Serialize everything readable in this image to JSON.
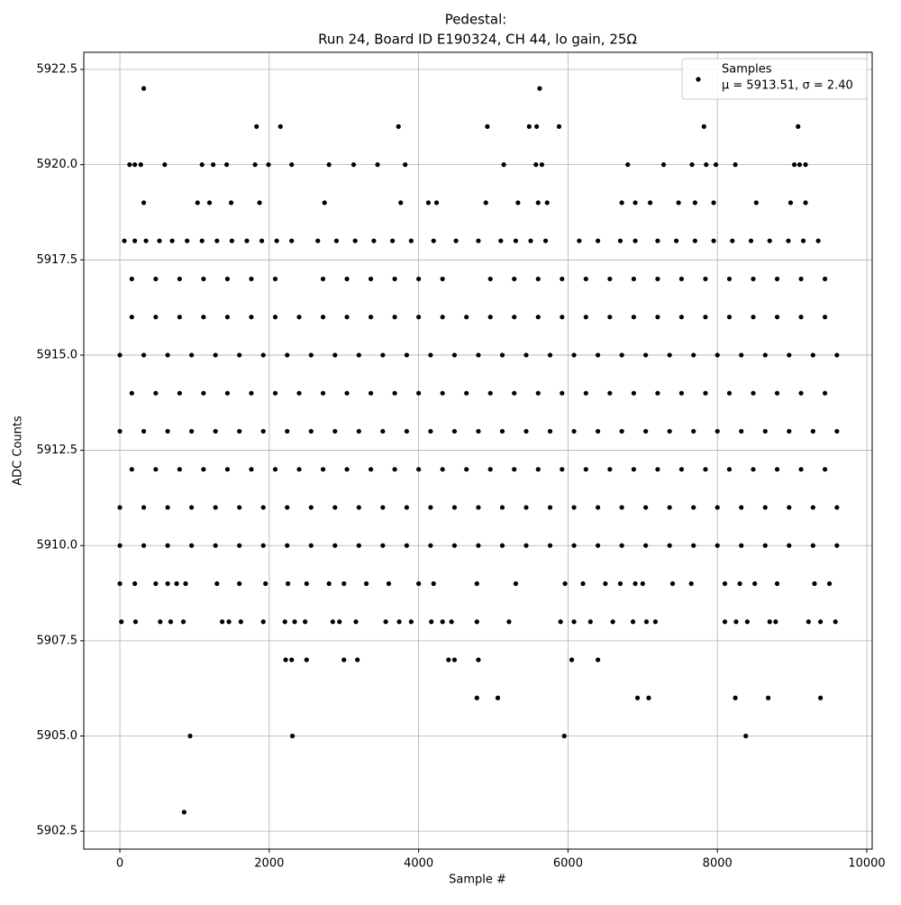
{
  "chart_data": {
    "type": "scatter",
    "title": [
      "Pedestal:",
      "Run 24, Board ID E190324, CH 44, lo gain, 25Ω"
    ],
    "x_label": "Sample #",
    "y_label": "ADC Counts",
    "legend_label": "μ = 5913.51, σ = 2.40",
    "legend_position": "upper right",
    "grid": true,
    "xlim": [
      -483,
      10072
    ],
    "xticks": [
      0,
      2000,
      4000,
      6000,
      8000,
      10000
    ],
    "ylim": [
      5902.03,
      5922.95
    ],
    "yticks": [
      5902.5,
      {
        "value": 5905,
        "label": "5905.0"
      },
      5907.5,
      {
        "value": 5910,
        "label": "5910.0"
      },
      5912.5,
      {
        "value": 5915,
        "label": "5915.0"
      },
      5917.5,
      {
        "value": 5920,
        "label": "5920.0"
      },
      5922.5
    ],
    "series": [
      {
        "name": "Samples",
        "color": "#000000",
        "x": [
          320,
          5620,
          1830,
          2150,
          3730,
          4920,
          5480,
          5580,
          5880,
          7820,
          9080,
          130,
          200,
          280,
          600,
          1100,
          1250,
          1430,
          1810,
          1990,
          2300,
          2800,
          3130,
          3450,
          3820,
          5140,
          5570,
          5650,
          6800,
          7280,
          7660,
          7850,
          7980,
          8240,
          9030,
          9100,
          9180,
          320,
          1040,
          1200,
          1490,
          1870,
          2740,
          3760,
          4130,
          4240,
          4900,
          5330,
          5600,
          5720,
          6720,
          6900,
          7100,
          7480,
          7700,
          7950,
          8520,
          8980,
          9180,
          60,
          200,
          350,
          530,
          700,
          900,
          1100,
          1300,
          1500,
          1700,
          1900,
          2100,
          2300,
          2650,
          2900,
          3150,
          3400,
          3650,
          3900,
          4200,
          4500,
          4800,
          5100,
          5300,
          5500,
          5700,
          6150,
          6400,
          6700,
          6900,
          7200,
          7450,
          7700,
          7950,
          8200,
          8450,
          8700,
          8950,
          9150,
          9350,
          160,
          480,
          800,
          1120,
          1440,
          1760,
          2080,
          2720,
          3040,
          3360,
          3680,
          4000,
          4320,
          4960,
          5280,
          5600,
          5920,
          6240,
          6560,
          6880,
          7200,
          7520,
          7840,
          8160,
          8480,
          8800,
          9120,
          9440,
          160,
          480,
          800,
          1120,
          1440,
          1760,
          2080,
          2400,
          2720,
          3040,
          3360,
          3680,
          4000,
          4320,
          4640,
          4960,
          5280,
          5600,
          5920,
          6240,
          6560,
          6880,
          7200,
          7520,
          7840,
          8160,
          8480,
          8800,
          9120,
          9440,
          0,
          320,
          640,
          960,
          1280,
          1600,
          1920,
          2240,
          2560,
          2880,
          3200,
          3520,
          3840,
          4160,
          4480,
          4800,
          5120,
          5440,
          5760,
          6080,
          6400,
          6720,
          7040,
          7360,
          7680,
          8000,
          8320,
          8640,
          8960,
          9280,
          9600,
          160,
          480,
          800,
          1120,
          1440,
          1760,
          2080,
          2400,
          2720,
          3040,
          3360,
          3680,
          4000,
          4320,
          4640,
          4960,
          5280,
          5600,
          5920,
          6240,
          6560,
          6880,
          7200,
          7520,
          7840,
          8160,
          8480,
          8800,
          9120,
          9440,
          0,
          320,
          640,
          960,
          1280,
          1600,
          1920,
          2240,
          2560,
          2880,
          3200,
          3520,
          3840,
          4160,
          4480,
          4800,
          5120,
          5440,
          5760,
          6080,
          6400,
          6720,
          7040,
          7360,
          7680,
          8000,
          8320,
          8640,
          8960,
          9280,
          9600,
          160,
          480,
          800,
          1120,
          1440,
          1760,
          2080,
          2400,
          2720,
          3040,
          3360,
          3680,
          4000,
          4320,
          4640,
          4960,
          5280,
          5600,
          5920,
          6240,
          6560,
          6880,
          7200,
          7520,
          7840,
          8160,
          8480,
          8800,
          9120,
          9440,
          0,
          320,
          640,
          960,
          1280,
          1600,
          1920,
          2240,
          2560,
          2880,
          3200,
          3520,
          3840,
          4160,
          4480,
          4800,
          5120,
          5440,
          5760,
          6080,
          6400,
          6720,
          7040,
          7360,
          7680,
          8000,
          8320,
          8640,
          8960,
          9280,
          9600,
          0,
          320,
          640,
          960,
          1280,
          1600,
          1920,
          2240,
          2560,
          2880,
          3200,
          3520,
          3840,
          4160,
          4480,
          4800,
          5120,
          5440,
          5760,
          6080,
          6400,
          6720,
          7040,
          7360,
          7680,
          8000,
          8320,
          8640,
          8960,
          9280,
          9600,
          0,
          200,
          480,
          640,
          760,
          880,
          1300,
          1600,
          1950,
          2250,
          2500,
          2800,
          3000,
          3300,
          3600,
          4000,
          4200,
          4780,
          5300,
          5960,
          6200,
          6500,
          6700,
          6900,
          7000,
          7400,
          7650,
          8100,
          8300,
          8500,
          8800,
          9300,
          9500,
          20,
          210,
          540,
          680,
          850,
          1370,
          1460,
          1620,
          1920,
          2210,
          2340,
          2480,
          2850,
          2940,
          3160,
          3560,
          3740,
          3900,
          4170,
          4320,
          4440,
          4780,
          5210,
          5900,
          6080,
          6300,
          6600,
          6870,
          7050,
          7170,
          8100,
          8250,
          8400,
          8700,
          8780,
          9220,
          9380,
          9580,
          2220,
          2300,
          2500,
          3000,
          3180,
          4400,
          4480,
          4800,
          6050,
          6400,
          4780,
          5060,
          6930,
          7080,
          8240,
          8680,
          9380,
          940,
          2310,
          5950,
          8380,
          860
        ],
        "values": [
          5922,
          5922,
          5921,
          5921,
          5921,
          5921,
          5921,
          5921,
          5921,
          5921,
          5921,
          5920,
          5920,
          5920,
          5920,
          5920,
          5920,
          5920,
          5920,
          5920,
          5920,
          5920,
          5920,
          5920,
          5920,
          5920,
          5920,
          5920,
          5920,
          5920,
          5920,
          5920,
          5920,
          5920,
          5920,
          5920,
          5920,
          5919,
          5919,
          5919,
          5919,
          5919,
          5919,
          5919,
          5919,
          5919,
          5919,
          5919,
          5919,
          5919,
          5919,
          5919,
          5919,
          5919,
          5919,
          5919,
          5919,
          5919,
          5919,
          5918,
          5918,
          5918,
          5918,
          5918,
          5918,
          5918,
          5918,
          5918,
          5918,
          5918,
          5918,
          5918,
          5918,
          5918,
          5918,
          5918,
          5918,
          5918,
          5918,
          5918,
          5918,
          5918,
          5918,
          5918,
          5918,
          5918,
          5918,
          5918,
          5918,
          5918,
          5918,
          5918,
          5918,
          5918,
          5918,
          5918,
          5918,
          5918,
          5918,
          5917,
          5917,
          5917,
          5917,
          5917,
          5917,
          5917,
          5917,
          5917,
          5917,
          5917,
          5917,
          5917,
          5917,
          5917,
          5917,
          5917,
          5917,
          5917,
          5917,
          5917,
          5917,
          5917,
          5917,
          5917,
          5917,
          5917,
          5917,
          5916,
          5916,
          5916,
          5916,
          5916,
          5916,
          5916,
          5916,
          5916,
          5916,
          5916,
          5916,
          5916,
          5916,
          5916,
          5916,
          5916,
          5916,
          5916,
          5916,
          5916,
          5916,
          5916,
          5916,
          5916,
          5916,
          5916,
          5916,
          5916,
          5916,
          5915,
          5915,
          5915,
          5915,
          5915,
          5915,
          5915,
          5915,
          5915,
          5915,
          5915,
          5915,
          5915,
          5915,
          5915,
          5915,
          5915,
          5915,
          5915,
          5915,
          5915,
          5915,
          5915,
          5915,
          5915,
          5915,
          5915,
          5915,
          5915,
          5915,
          5915,
          5914,
          5914,
          5914,
          5914,
          5914,
          5914,
          5914,
          5914,
          5914,
          5914,
          5914,
          5914,
          5914,
          5914,
          5914,
          5914,
          5914,
          5914,
          5914,
          5914,
          5914,
          5914,
          5914,
          5914,
          5914,
          5914,
          5914,
          5914,
          5914,
          5914,
          5913,
          5913,
          5913,
          5913,
          5913,
          5913,
          5913,
          5913,
          5913,
          5913,
          5913,
          5913,
          5913,
          5913,
          5913,
          5913,
          5913,
          5913,
          5913,
          5913,
          5913,
          5913,
          5913,
          5913,
          5913,
          5913,
          5913,
          5913,
          5913,
          5913,
          5913,
          5912,
          5912,
          5912,
          5912,
          5912,
          5912,
          5912,
          5912,
          5912,
          5912,
          5912,
          5912,
          5912,
          5912,
          5912,
          5912,
          5912,
          5912,
          5912,
          5912,
          5912,
          5912,
          5912,
          5912,
          5912,
          5912,
          5912,
          5912,
          5912,
          5912,
          5911,
          5911,
          5911,
          5911,
          5911,
          5911,
          5911,
          5911,
          5911,
          5911,
          5911,
          5911,
          5911,
          5911,
          5911,
          5911,
          5911,
          5911,
          5911,
          5911,
          5911,
          5911,
          5911,
          5911,
          5911,
          5911,
          5911,
          5911,
          5911,
          5911,
          5911,
          5910,
          5910,
          5910,
          5910,
          5910,
          5910,
          5910,
          5910,
          5910,
          5910,
          5910,
          5910,
          5910,
          5910,
          5910,
          5910,
          5910,
          5910,
          5910,
          5910,
          5910,
          5910,
          5910,
          5910,
          5910,
          5910,
          5910,
          5910,
          5910,
          5910,
          5910,
          5909,
          5909,
          5909,
          5909,
          5909,
          5909,
          5909,
          5909,
          5909,
          5909,
          5909,
          5909,
          5909,
          5909,
          5909,
          5909,
          5909,
          5909,
          5909,
          5909,
          5909,
          5909,
          5909,
          5909,
          5909,
          5909,
          5909,
          5909,
          5909,
          5909,
          5909,
          5909,
          5909,
          5908,
          5908,
          5908,
          5908,
          5908,
          5908,
          5908,
          5908,
          5908,
          5908,
          5908,
          5908,
          5908,
          5908,
          5908,
          5908,
          5908,
          5908,
          5908,
          5908,
          5908,
          5908,
          5908,
          5908,
          5908,
          5908,
          5908,
          5908,
          5908,
          5908,
          5908,
          5908,
          5908,
          5908,
          5908,
          5908,
          5908,
          5908,
          5907,
          5907,
          5907,
          5907,
          5907,
          5907,
          5907,
          5907,
          5907,
          5907,
          5906,
          5906,
          5906,
          5906,
          5906,
          5906,
          5906,
          5905,
          5905,
          5905,
          5905,
          5903
        ]
      }
    ]
  }
}
